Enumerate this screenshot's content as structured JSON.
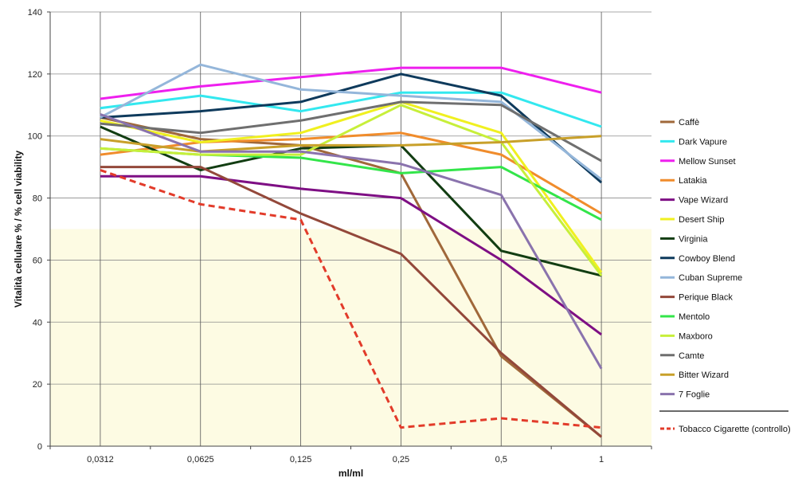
{
  "chart_data": {
    "type": "line",
    "title": "",
    "xlabel": "ml/ml",
    "ylabel": "Vitalità cellulare % / % cell viability",
    "categories": [
      "0,0312",
      "0,0625",
      "0,125",
      "0,25",
      "0,5",
      "1"
    ],
    "ylim": [
      0,
      140
    ],
    "yticks": [
      0,
      20,
      40,
      60,
      80,
      100,
      120,
      140
    ],
    "grid": true,
    "legend": "right",
    "highlight_band": {
      "from": 0,
      "to": 70,
      "color": "#fdfbe3"
    },
    "series": [
      {
        "name": "Caffè",
        "color": "#a0683a",
        "values": [
          106,
          99,
          97,
          88,
          29,
          3
        ]
      },
      {
        "name": "Dark Vapure",
        "color": "#33e8ef",
        "values": [
          109,
          113,
          108,
          114,
          114,
          103
        ]
      },
      {
        "name": "Mellow Sunset",
        "color": "#ee1fee",
        "values": [
          112,
          116,
          119,
          122,
          122,
          114
        ]
      },
      {
        "name": "Latakia",
        "color": "#f08c2c",
        "values": [
          94,
          98,
          99,
          101,
          94,
          75
        ]
      },
      {
        "name": "Vape Wizard",
        "color": "#7e0f84",
        "values": [
          87,
          87,
          83,
          80,
          60,
          36
        ]
      },
      {
        "name": "Desert Ship",
        "color": "#f0f020",
        "values": [
          105,
          98,
          101,
          111,
          101,
          56
        ]
      },
      {
        "name": "Virginia",
        "color": "#123d12",
        "values": [
          103,
          89,
          96,
          97,
          63,
          55
        ]
      },
      {
        "name": "Cowboy Blend",
        "color": "#0e3a5c",
        "values": [
          106,
          108,
          111,
          120,
          113,
          85
        ]
      },
      {
        "name": "Cuban Supreme",
        "color": "#94b6da",
        "values": [
          106,
          123,
          115,
          113,
          111,
          86
        ]
      },
      {
        "name": "Perique Black",
        "color": "#93483a",
        "values": [
          90,
          90,
          75,
          62,
          30,
          3
        ]
      },
      {
        "name": "Mentolo",
        "color": "#33e54a",
        "values": [
          96,
          94,
          93,
          88,
          90,
          73
        ]
      },
      {
        "name": "Maxboro",
        "color": "#c7ef3a",
        "values": [
          96,
          94,
          94,
          110,
          98,
          55
        ]
      },
      {
        "name": "Camte",
        "color": "#6f6f6f",
        "values": [
          104,
          101,
          105,
          111,
          110,
          92
        ]
      },
      {
        "name": "Bitter Wizard",
        "color": "#c8a02a",
        "values": [
          99,
          95,
          97,
          97,
          98,
          100
        ]
      },
      {
        "name": "7 Foglie",
        "color": "#8a73ad",
        "values": [
          107,
          95,
          95,
          91,
          81,
          25
        ]
      },
      {
        "name": "Tobacco Cigarette (controllo)",
        "color": "#e23b2a",
        "dashed": true,
        "values": [
          89,
          78,
          73,
          6,
          9,
          6
        ]
      }
    ]
  }
}
